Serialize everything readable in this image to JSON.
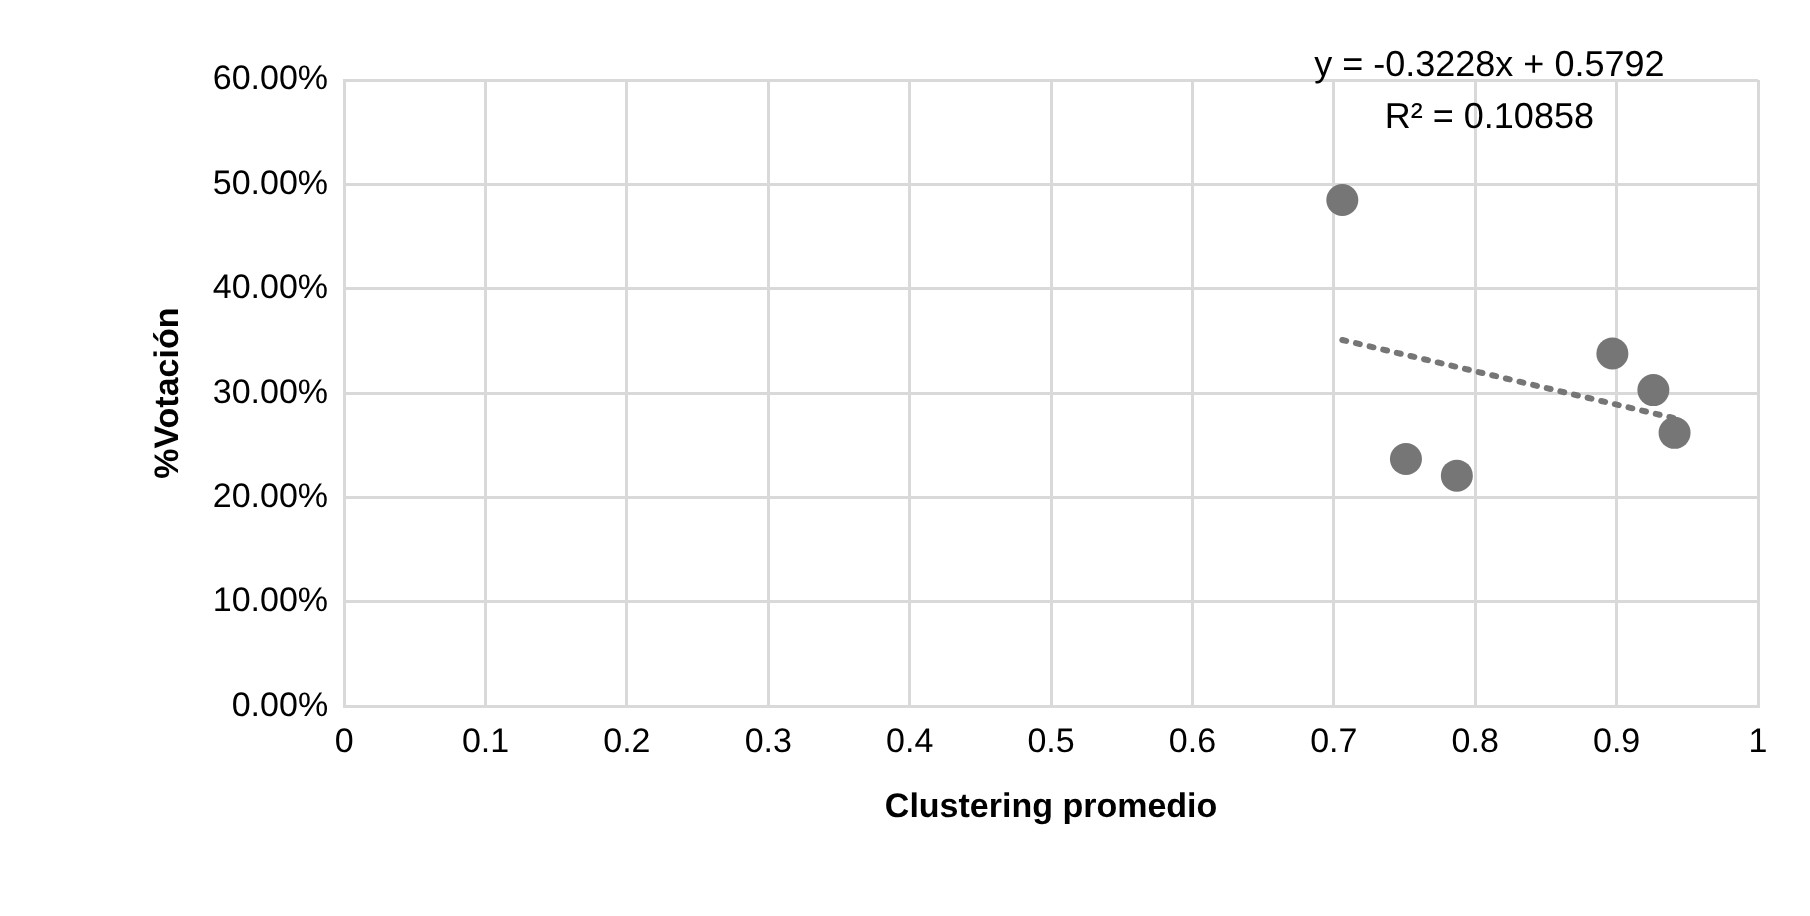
{
  "chart_data": {
    "type": "scatter",
    "xlabel": "Clustering promedio",
    "ylabel": "%Votación",
    "xlim": [
      0,
      1
    ],
    "xticks": [
      0,
      0.1,
      0.2,
      0.3,
      0.4,
      0.5,
      0.6,
      0.7,
      0.8,
      0.9,
      1
    ],
    "ylim": [
      0,
      0.6
    ],
    "yticks": [
      {
        "value": 0,
        "label": "0.00%"
      },
      {
        "value": 0.1,
        "label": "10.00%"
      },
      {
        "value": 0.2,
        "label": "20.00%"
      },
      {
        "value": 0.3,
        "label": "30.00%"
      },
      {
        "value": 0.4,
        "label": "40.00%"
      },
      {
        "value": 0.5,
        "label": "50.00%"
      },
      {
        "value": 0.6,
        "label": "60.00%"
      }
    ],
    "grid": true,
    "legend": false,
    "marker": "circle",
    "series": [
      {
        "color": "#767676",
        "x": [
          0.706,
          0.751,
          0.787,
          0.897,
          0.926,
          0.941
        ],
        "values": [
          0.485,
          0.237,
          0.221,
          0.338,
          0.303,
          0.262
        ]
      },
      {
        "type": "line",
        "color": "#767676",
        "line_style": "dotted",
        "marker": "none",
        "x": [
          0.706,
          0.941
        ],
        "values": [
          0.351,
          0.276
        ]
      }
    ],
    "annotations": [
      "y = -0.3228x + 0.5792",
      "R² = 0.10858"
    ]
  }
}
